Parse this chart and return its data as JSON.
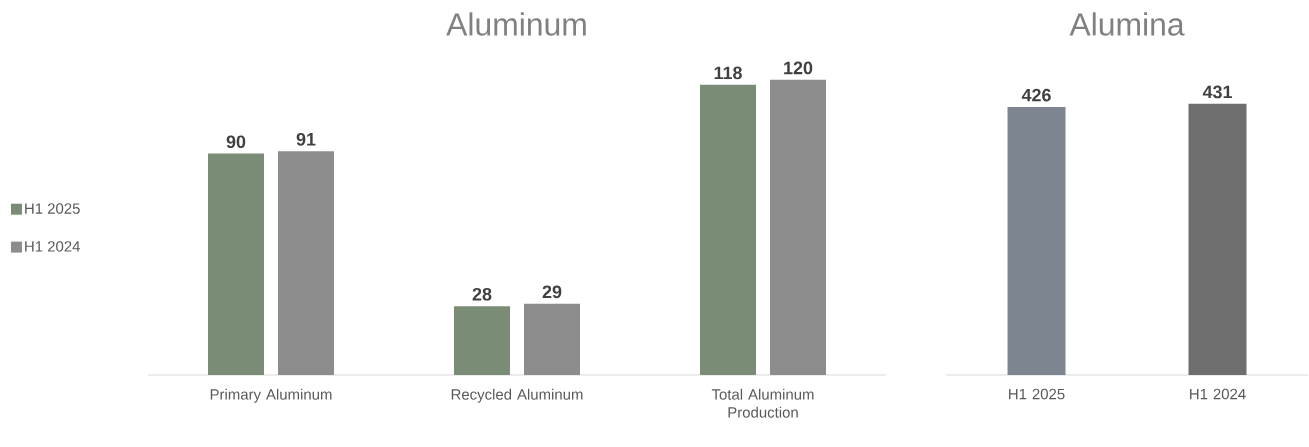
{
  "chart_data": [
    {
      "type": "bar",
      "title": "Aluminum",
      "categories": [
        "Primary Aluminum",
        "Recycled Aluminum",
        "Total Aluminum Production"
      ],
      "series": [
        {
          "name": "H1 2025",
          "color": "#7a8c76",
          "values": [
            90,
            28,
            118
          ]
        },
        {
          "name": "H1 2024",
          "color": "#8c8c8c",
          "values": [
            91,
            29,
            120
          ]
        }
      ],
      "data_labels": true,
      "legend": "left"
    },
    {
      "type": "bar",
      "title": "Alumina",
      "categories": [
        "H1 2025",
        "H1 2024"
      ],
      "values": [
        426,
        431
      ],
      "colors": [
        "#7d8590",
        "#6e6e6e"
      ],
      "data_labels": true
    }
  ]
}
